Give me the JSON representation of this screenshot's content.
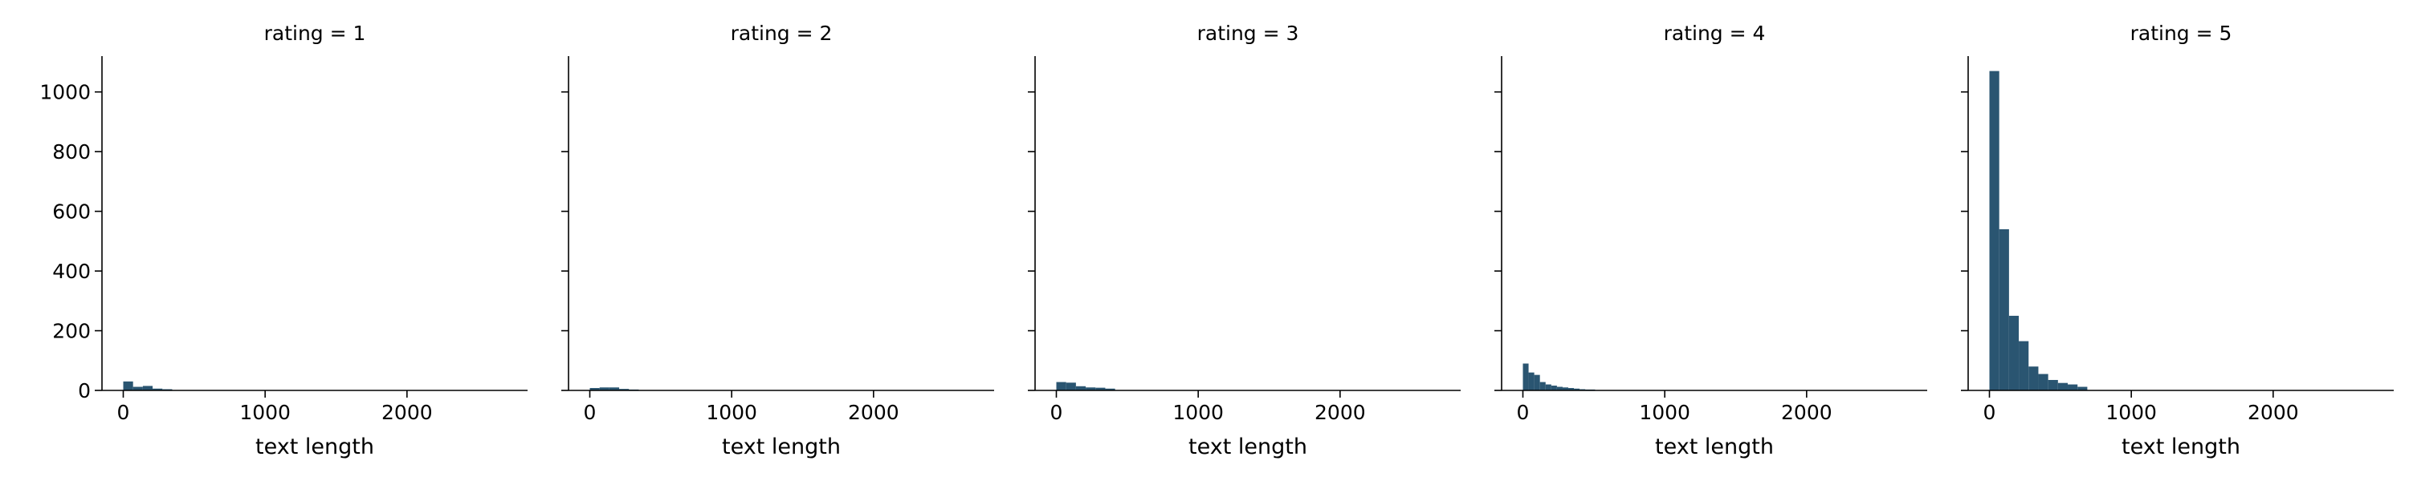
{
  "chart_data": {
    "type": "bar",
    "layout": "facet-grid",
    "shared_y": true,
    "xlim": [
      -150,
      2850
    ],
    "ylim": [
      0,
      1120
    ],
    "xticks": [
      0,
      1000,
      2000
    ],
    "xtick_labels": [
      "0",
      "1000",
      "2000"
    ],
    "yticks": [
      0,
      200,
      400,
      600,
      800,
      1000
    ],
    "ytick_labels": [
      "0",
      "200",
      "400",
      "600",
      "800",
      "1000"
    ],
    "bin_width": 69,
    "bar_color": "#2a5571",
    "grid": false,
    "panels": [
      {
        "title": "rating = 1",
        "xlabel": "text length",
        "ylabel": "",
        "bin_starts": [
          0,
          69,
          138,
          207,
          276
        ],
        "counts": [
          30,
          12,
          15,
          6,
          4
        ]
      },
      {
        "title": "rating = 2",
        "xlabel": "text length",
        "ylabel": "",
        "bin_starts": [
          0,
          69,
          138,
          207,
          276
        ],
        "counts": [
          8,
          10,
          10,
          5,
          3
        ]
      },
      {
        "title": "rating = 3",
        "xlabel": "text length",
        "ylabel": "",
        "bin_starts": [
          0,
          69,
          138,
          207,
          276,
          345
        ],
        "counts": [
          28,
          26,
          14,
          10,
          9,
          6
        ]
      },
      {
        "title": "rating = 4",
        "xlabel": "text length",
        "ylabel": "",
        "bin_starts": [
          0,
          40,
          80,
          120,
          160,
          200,
          240,
          280,
          320,
          360,
          400,
          440
        ],
        "counts": [
          90,
          60,
          52,
          28,
          20,
          16,
          12,
          10,
          8,
          6,
          4,
          3
        ]
      },
      {
        "title": "rating = 5",
        "xlabel": "text length",
        "ylabel": "",
        "bin_starts": [
          0,
          69,
          138,
          207,
          276,
          345,
          414,
          483,
          552,
          621
        ],
        "counts": [
          1070,
          540,
          250,
          165,
          80,
          55,
          35,
          25,
          20,
          12
        ]
      }
    ]
  }
}
